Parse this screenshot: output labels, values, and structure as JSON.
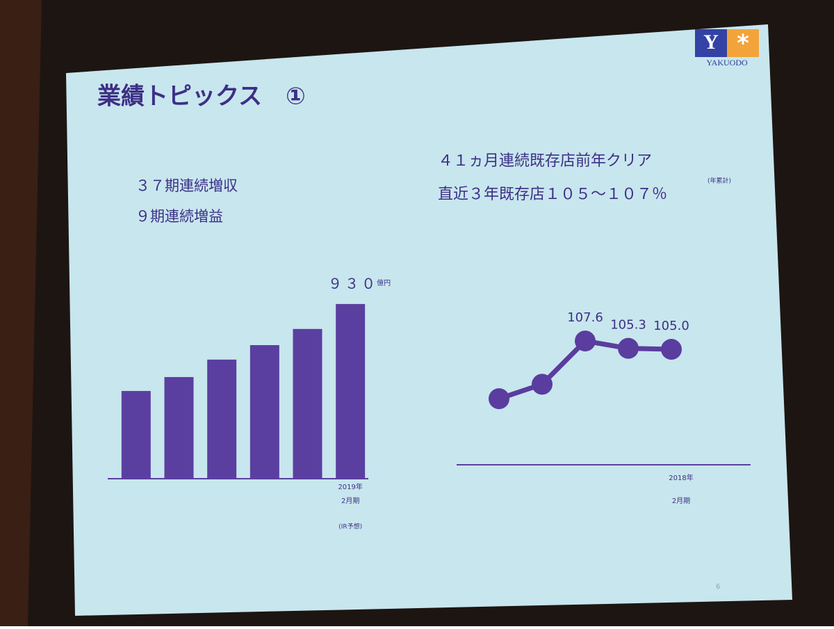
{
  "slide": {
    "title": "業績トピックス　①",
    "logo": {
      "mark": "Y",
      "name": "YAKUODO"
    },
    "left_lines": [
      "３７期連続増収",
      "９期連続増益"
    ],
    "right_lines": [
      "４１ヵ月連続既存店前年クリア",
      "直近３年既存店１０５～１０７％"
    ],
    "right_note": "(年累計)",
    "page_number": "6"
  },
  "chart_data": [
    {
      "type": "bar",
      "categories": [
        null,
        null,
        null,
        null,
        null,
        "2019年"
      ],
      "period_label": "2月期",
      "note": "(IR予想)",
      "values": [
        467,
        541,
        634,
        711,
        797,
        930
      ],
      "value_labels": [
        null,
        null,
        null,
        null,
        null,
        "９３０"
      ],
      "unit": "億円",
      "color": "#5b3fa0",
      "ylim": [
        0,
        1000
      ]
    },
    {
      "type": "line",
      "categories": [
        null,
        null,
        null,
        null,
        "2018年"
      ],
      "period_label": "2月期",
      "values": [
        89.6,
        94.1,
        107.6,
        105.3,
        105.0
      ],
      "value_labels": [
        null,
        null,
        "107.6",
        "105.3",
        "105.0"
      ],
      "color": "#5a3d9e",
      "ylim": [
        69,
        110
      ]
    }
  ]
}
